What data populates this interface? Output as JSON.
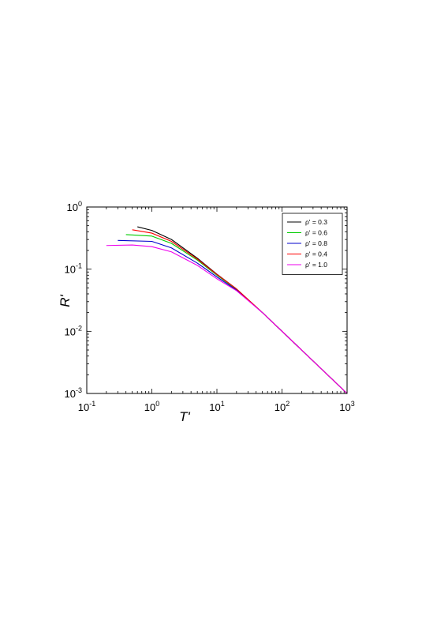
{
  "chart_data": {
    "type": "line",
    "xlabel": "T'",
    "ylabel": "R'",
    "xscale": "log",
    "yscale": "log",
    "xlim": [
      0.1,
      1000
    ],
    "ylim": [
      0.001,
      1
    ],
    "grid": false,
    "legend_position": "top-right",
    "x_ticks": [
      {
        "base": "10",
        "exp": "-1",
        "value": 0.1
      },
      {
        "base": "10",
        "exp": "0",
        "value": 1
      },
      {
        "base": "10",
        "exp": "1",
        "value": 10
      },
      {
        "base": "10",
        "exp": "2",
        "value": 100
      },
      {
        "base": "10",
        "exp": "3",
        "value": 1000
      }
    ],
    "y_ticks": [
      {
        "base": "10",
        "exp": "0",
        "value": 1
      },
      {
        "base": "10",
        "exp": "-1",
        "value": 0.1
      },
      {
        "base": "10",
        "exp": "-2",
        "value": 0.01
      },
      {
        "base": "10",
        "exp": "-3",
        "value": 0.001
      }
    ],
    "series": [
      {
        "name": "ρ' = 0.3",
        "color": "#000000",
        "x": [
          0.6,
          1,
          2,
          5,
          10,
          20,
          50,
          100,
          1000
        ],
        "y": [
          0.48,
          0.42,
          0.3,
          0.15,
          0.083,
          0.048,
          0.02,
          0.01,
          0.001
        ]
      },
      {
        "name": "ρ' = 0.6",
        "color": "#00cc00",
        "x": [
          0.4,
          1,
          2,
          5,
          10,
          20,
          50,
          100,
          1000
        ],
        "y": [
          0.36,
          0.34,
          0.26,
          0.14,
          0.08,
          0.047,
          0.02,
          0.01,
          0.001
        ]
      },
      {
        "name": "ρ' = 0.8",
        "color": "#0000cc",
        "x": [
          0.3,
          1,
          2,
          5,
          10,
          20,
          50,
          100,
          1000
        ],
        "y": [
          0.29,
          0.28,
          0.22,
          0.125,
          0.075,
          0.046,
          0.02,
          0.01,
          0.001
        ]
      },
      {
        "name": "ρ' = 0.4",
        "color": "#ff0000",
        "x": [
          0.5,
          1,
          2,
          5,
          10,
          20,
          50,
          100,
          1000
        ],
        "y": [
          0.43,
          0.38,
          0.28,
          0.145,
          0.082,
          0.048,
          0.02,
          0.01,
          0.001
        ]
      },
      {
        "name": "ρ' = 1.0",
        "color": "#ee00ee",
        "x": [
          0.2,
          0.5,
          1,
          2,
          5,
          10,
          20,
          50,
          100,
          1000
        ],
        "y": [
          0.24,
          0.245,
          0.23,
          0.19,
          0.115,
          0.07,
          0.045,
          0.02,
          0.01,
          0.001
        ]
      }
    ]
  }
}
